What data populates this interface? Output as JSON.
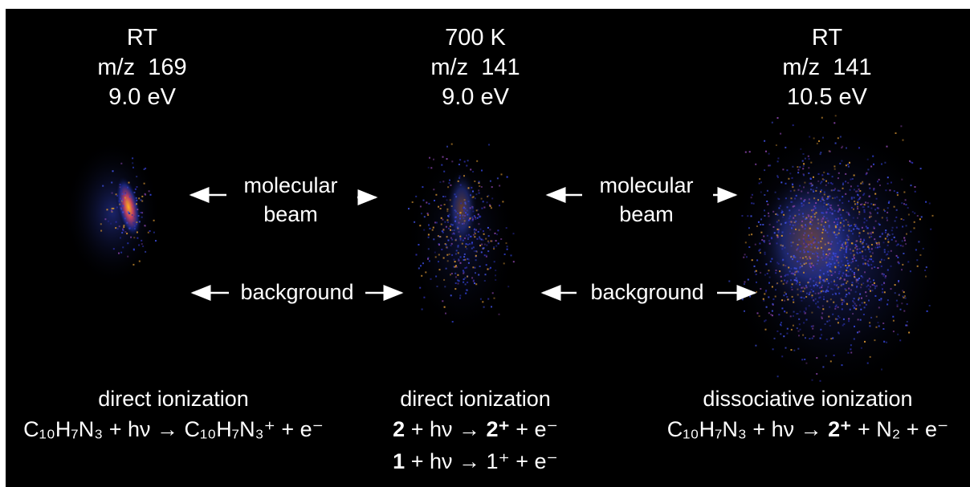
{
  "panels": [
    {
      "temperature": "RT",
      "mass": "m/z  169",
      "energy": "9.0 eV",
      "process": "direct ionization",
      "equations": [
        [
          "C₁₀H₇N₃ + hν → C₁₀H₇N₃⁺ + e⁻"
        ]
      ]
    },
    {
      "temperature": "700 K",
      "mass": "m/z  141",
      "energy": "9.0 eV",
      "process": "direct ionization",
      "equations": [
        [
          "2",
          " + hν → ",
          "2⁺",
          " + e⁻"
        ],
        [
          "1",
          " + hν → 1⁺ + e⁻"
        ]
      ]
    },
    {
      "temperature": "RT",
      "mass": "m/z  141",
      "energy": "10.5 eV",
      "process": "dissociative ionization",
      "equations": [
        [
          "C₁₀H₇N₃ + hν → ",
          "2⁺",
          " + N₂ + e⁻"
        ]
      ]
    }
  ],
  "beam_labels": [
    {
      "line1": "molecular",
      "line2": "beam"
    },
    {
      "line1": "molecular",
      "line2": "beam"
    }
  ],
  "background_labels": [
    "background",
    "background"
  ]
}
